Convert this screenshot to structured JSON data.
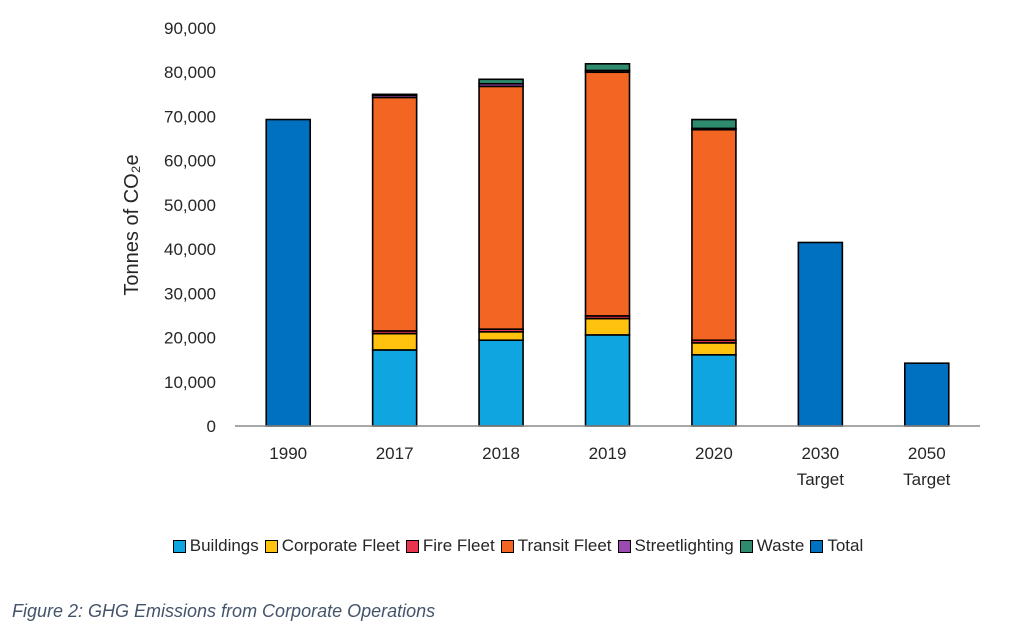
{
  "chart_data": {
    "type": "bar",
    "stacked": true,
    "ylabel": "Tonnes of CO₂e",
    "ylim": [
      0,
      90000
    ],
    "yticks": [
      0,
      10000,
      20000,
      30000,
      40000,
      50000,
      60000,
      70000,
      80000,
      90000
    ],
    "ytick_labels": [
      "0",
      "10,000",
      "20,000",
      "30,000",
      "40,000",
      "50,000",
      "60,000",
      "70,000",
      "80,000",
      "90,000"
    ],
    "categories": [
      [
        "1990"
      ],
      [
        "2017"
      ],
      [
        "2018"
      ],
      [
        "2019"
      ],
      [
        "2020"
      ],
      [
        "2030",
        "Target"
      ],
      [
        "2050",
        "Target"
      ]
    ],
    "series": [
      {
        "name": "Buildings",
        "color": "#0ea5e0",
        "values": [
          0,
          17200,
          19400,
          20600,
          16100,
          0,
          0
        ]
      },
      {
        "name": "Corporate Fleet",
        "color": "#ffc20e",
        "values": [
          0,
          3700,
          1900,
          3700,
          2700,
          0,
          0
        ]
      },
      {
        "name": "Fire Fleet",
        "color": "#e8344e",
        "values": [
          0,
          600,
          600,
          600,
          600,
          0,
          0
        ]
      },
      {
        "name": "Transit Fleet",
        "color": "#f26522",
        "values": [
          0,
          52800,
          54900,
          55100,
          47600,
          0,
          0
        ]
      },
      {
        "name": "Streetlighting",
        "color": "#9b4bb0",
        "values": [
          0,
          500,
          600,
          400,
          300,
          0,
          0
        ]
      },
      {
        "name": "Waste",
        "color": "#2e8b6e",
        "values": [
          0,
          200,
          1000,
          1500,
          2000,
          0,
          0
        ]
      },
      {
        "name": "Total",
        "color": "#0070c0",
        "values": [
          69300,
          0,
          0,
          0,
          0,
          41500,
          14200
        ]
      }
    ],
    "legend_position": "bottom",
    "caption": "Figure 2: GHG Emissions from Corporate Operations"
  }
}
